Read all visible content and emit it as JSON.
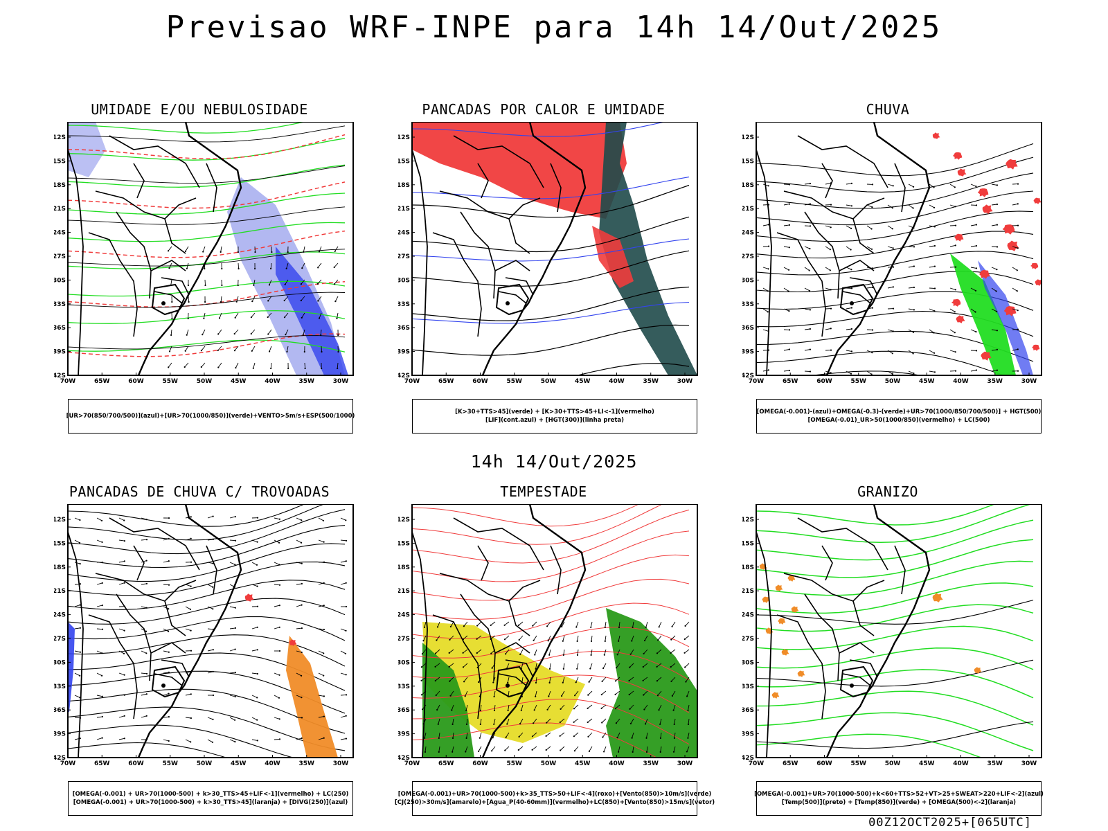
{
  "main_title": "Previsao WRF-INPE  para 14h 14/Out/2025",
  "mid_title": "14h 14/Out/2025",
  "footer": "00Z12OCT2025+[065UTC]",
  "lat_ticks": [
    "12S",
    "15S",
    "18S",
    "21S",
    "24S",
    "27S",
    "30S",
    "33S",
    "36S",
    "39S",
    "42S"
  ],
  "lon_ticks": [
    "70W",
    "65W",
    "60W",
    "55W",
    "50W",
    "45W",
    "40W",
    "35W",
    "30W"
  ],
  "panels": [
    {
      "title": "UMIDADE E/OU NEBULOSIDADE",
      "legend": [
        "[UR>70(850/700/500)](azul)+[UR>70(1000/850)](verde)+VENTO>5m/s+ESP(500/1000)"
      ]
    },
    {
      "title": "PANCADAS POR CALOR E UMIDADE",
      "legend": [
        "[K>30+TTS>45](verde)  +  [K>30+TTS>45+LI<-1](vermelho)",
        "[LIF](cont.azul)  +  [HGT(300)](linha preta)"
      ]
    },
    {
      "title": "CHUVA",
      "legend": [
        "[OMEGA(-0.001)-(azul)+OMEGA(-0.3)-(verde)+UR>70(1000/850/700/500)]  +  HGT(500)",
        "[OMEGA(-0.01)_UR>50(1000/850)(vermelho)  +  LC(500)"
      ]
    },
    {
      "title": "PANCADAS DE CHUVA C/ TROVOADAS",
      "legend": [
        "[OMEGA(-0.001)  +  UR>70(1000-500)  +  k>30_TTS>45+LIF<-1](vermelho)  +  LC(250)",
        "[OMEGA(-0.001)  +  UR>70(1000-500)  +  k>30_TTS>45](laranja)  +  [DIVG(250)](azul)"
      ]
    },
    {
      "title": "TEMPESTADE",
      "legend": [
        "[OMEGA(-0.001)+UR>70(1000-500)+k>35_TTS>50+LIF<-4](roxo)+[Vento(850)>10m/s](verde)",
        "[CJ(250)>30m/s](amarelo)+[Agua_P(40-60mm)](vermelho)+LC(850)+[Vento(850)>15m/s](vetor)"
      ]
    },
    {
      "title": "GRANIZO",
      "legend": [
        "[OMEGA(-0.001)+UR>70(1000-500)+k<60+TTS>52+VT>25+SWEAT>220+LIF<-2](azul)",
        "[Temp(500)](preto)  +  [Temp(850)](verde)  +  [OMEGA(500)<-2](laranja)"
      ]
    }
  ],
  "colors": {
    "red": "#f03c3c",
    "green": "#22dd22",
    "blue": "#3344ee",
    "lightblue": "#aab0f0",
    "darkteal": "#1f4a4a",
    "yellow": "#e6dc28",
    "orange": "#f08c28",
    "darkgreen": "#2a9a1a"
  }
}
